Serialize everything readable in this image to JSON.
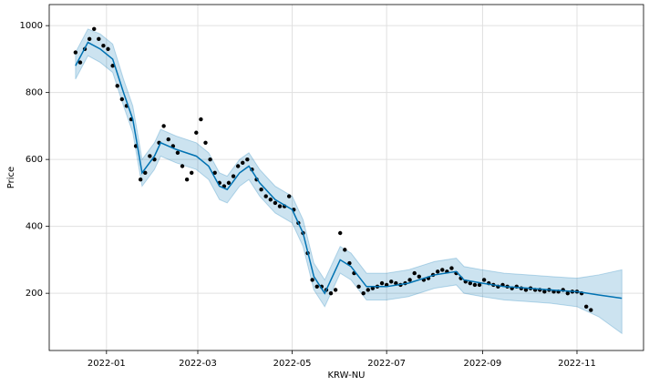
{
  "chart_data": {
    "type": "line",
    "x_label": "KRW-NU",
    "y_label": "Price",
    "xlim": [
      "2021-11-25",
      "2022-12-14"
    ],
    "ylim": [
      29,
      1063
    ],
    "xticks": [
      "2022-01",
      "2022-03",
      "2022-05",
      "2022-07",
      "2022-09",
      "2022-11"
    ],
    "yticks": [
      200,
      400,
      600,
      800,
      1000
    ],
    "grid": true,
    "points": {
      "color": "#000000",
      "x": [
        "2021-12-12",
        "2021-12-15",
        "2021-12-18",
        "2021-12-21",
        "2021-12-24",
        "2021-12-27",
        "2021-12-30",
        "2022-01-02",
        "2022-01-05",
        "2022-01-08",
        "2022-01-11",
        "2022-01-14",
        "2022-01-17",
        "2022-01-20",
        "2022-01-23",
        "2022-01-26",
        "2022-01-29",
        "2022-02-01",
        "2022-02-04",
        "2022-02-07",
        "2022-02-10",
        "2022-02-13",
        "2022-02-16",
        "2022-02-19",
        "2022-02-22",
        "2022-02-25",
        "2022-02-28",
        "2022-03-03",
        "2022-03-06",
        "2022-03-09",
        "2022-03-12",
        "2022-03-15",
        "2022-03-18",
        "2022-03-21",
        "2022-03-24",
        "2022-03-27",
        "2022-03-30",
        "2022-04-02",
        "2022-04-05",
        "2022-04-08",
        "2022-04-11",
        "2022-04-14",
        "2022-04-17",
        "2022-04-20",
        "2022-04-23",
        "2022-04-26",
        "2022-04-29",
        "2022-05-02",
        "2022-05-05",
        "2022-05-08",
        "2022-05-11",
        "2022-05-14",
        "2022-05-17",
        "2022-05-20",
        "2022-05-23",
        "2022-05-26",
        "2022-05-29",
        "2022-06-01",
        "2022-06-04",
        "2022-06-07",
        "2022-06-10",
        "2022-06-13",
        "2022-06-16",
        "2022-06-19",
        "2022-06-22",
        "2022-06-25",
        "2022-06-28",
        "2022-07-01",
        "2022-07-04",
        "2022-07-07",
        "2022-07-10",
        "2022-07-13",
        "2022-07-16",
        "2022-07-19",
        "2022-07-22",
        "2022-07-25",
        "2022-07-28",
        "2022-07-31",
        "2022-08-03",
        "2022-08-06",
        "2022-08-09",
        "2022-08-12",
        "2022-08-15",
        "2022-08-18",
        "2022-08-21",
        "2022-08-24",
        "2022-08-27",
        "2022-08-30",
        "2022-09-02",
        "2022-09-05",
        "2022-09-08",
        "2022-09-11",
        "2022-09-14",
        "2022-09-17",
        "2022-09-20",
        "2022-09-23",
        "2022-09-26",
        "2022-09-29",
        "2022-10-02",
        "2022-10-05",
        "2022-10-08",
        "2022-10-11",
        "2022-10-14",
        "2022-10-17",
        "2022-10-20",
        "2022-10-23",
        "2022-10-26",
        "2022-10-29",
        "2022-11-01",
        "2022-11-04",
        "2022-11-07",
        "2022-11-10"
      ],
      "values": [
        920,
        890,
        930,
        960,
        990,
        960,
        940,
        930,
        880,
        820,
        780,
        760,
        720,
        640,
        540,
        560,
        610,
        600,
        650,
        700,
        660,
        640,
        620,
        580,
        540,
        560,
        680,
        720,
        650,
        600,
        560,
        530,
        520,
        530,
        550,
        580,
        590,
        600,
        570,
        540,
        510,
        490,
        480,
        470,
        460,
        460,
        490,
        450,
        410,
        380,
        320,
        240,
        220,
        220,
        210,
        200,
        210,
        380,
        330,
        290,
        260,
        220,
        200,
        210,
        215,
        220,
        230,
        225,
        235,
        230,
        225,
        230,
        240,
        260,
        250,
        240,
        245,
        255,
        265,
        270,
        265,
        275,
        260,
        245,
        235,
        230,
        225,
        225,
        240,
        230,
        225,
        220,
        225,
        220,
        215,
        220,
        215,
        210,
        215,
        210,
        210,
        205,
        210,
        205,
        205,
        210,
        200,
        205,
        205,
        200,
        160,
        150
      ]
    },
    "forecast": {
      "color": "#0072B2",
      "x": [
        "2021-12-12",
        "2021-12-20",
        "2021-12-28",
        "2022-01-05",
        "2022-01-12",
        "2022-01-18",
        "2022-01-24",
        "2022-02-01",
        "2022-02-05",
        "2022-02-15",
        "2022-02-28",
        "2022-03-08",
        "2022-03-15",
        "2022-03-20",
        "2022-03-28",
        "2022-04-03",
        "2022-04-10",
        "2022-04-20",
        "2022-05-01",
        "2022-05-08",
        "2022-05-15",
        "2022-05-22",
        "2022-06-01",
        "2022-06-08",
        "2022-06-18",
        "2022-07-01",
        "2022-07-15",
        "2022-08-01",
        "2022-08-15",
        "2022-08-20",
        "2022-09-01",
        "2022-09-15",
        "2022-10-01",
        "2022-10-15",
        "2022-11-01",
        "2022-11-15",
        "2022-11-30"
      ],
      "values": [
        880,
        950,
        930,
        900,
        800,
        720,
        560,
        610,
        650,
        630,
        610,
        580,
        520,
        510,
        560,
        580,
        530,
        480,
        450,
        380,
        250,
        200,
        300,
        280,
        220,
        220,
        230,
        255,
        265,
        240,
        230,
        220,
        215,
        210,
        205,
        195,
        185
      ],
      "lower": [
        840,
        910,
        890,
        860,
        760,
        680,
        520,
        570,
        610,
        590,
        570,
        540,
        480,
        470,
        520,
        540,
        490,
        440,
        410,
        340,
        210,
        160,
        260,
        240,
        180,
        180,
        190,
        215,
        225,
        200,
        190,
        180,
        175,
        170,
        160,
        130,
        80
      ],
      "upper": [
        920,
        990,
        975,
        945,
        840,
        760,
        600,
        650,
        690,
        670,
        650,
        620,
        560,
        550,
        600,
        620,
        570,
        520,
        490,
        420,
        290,
        240,
        340,
        320,
        260,
        260,
        270,
        295,
        305,
        280,
        270,
        260,
        255,
        250,
        245,
        255,
        270
      ]
    }
  }
}
